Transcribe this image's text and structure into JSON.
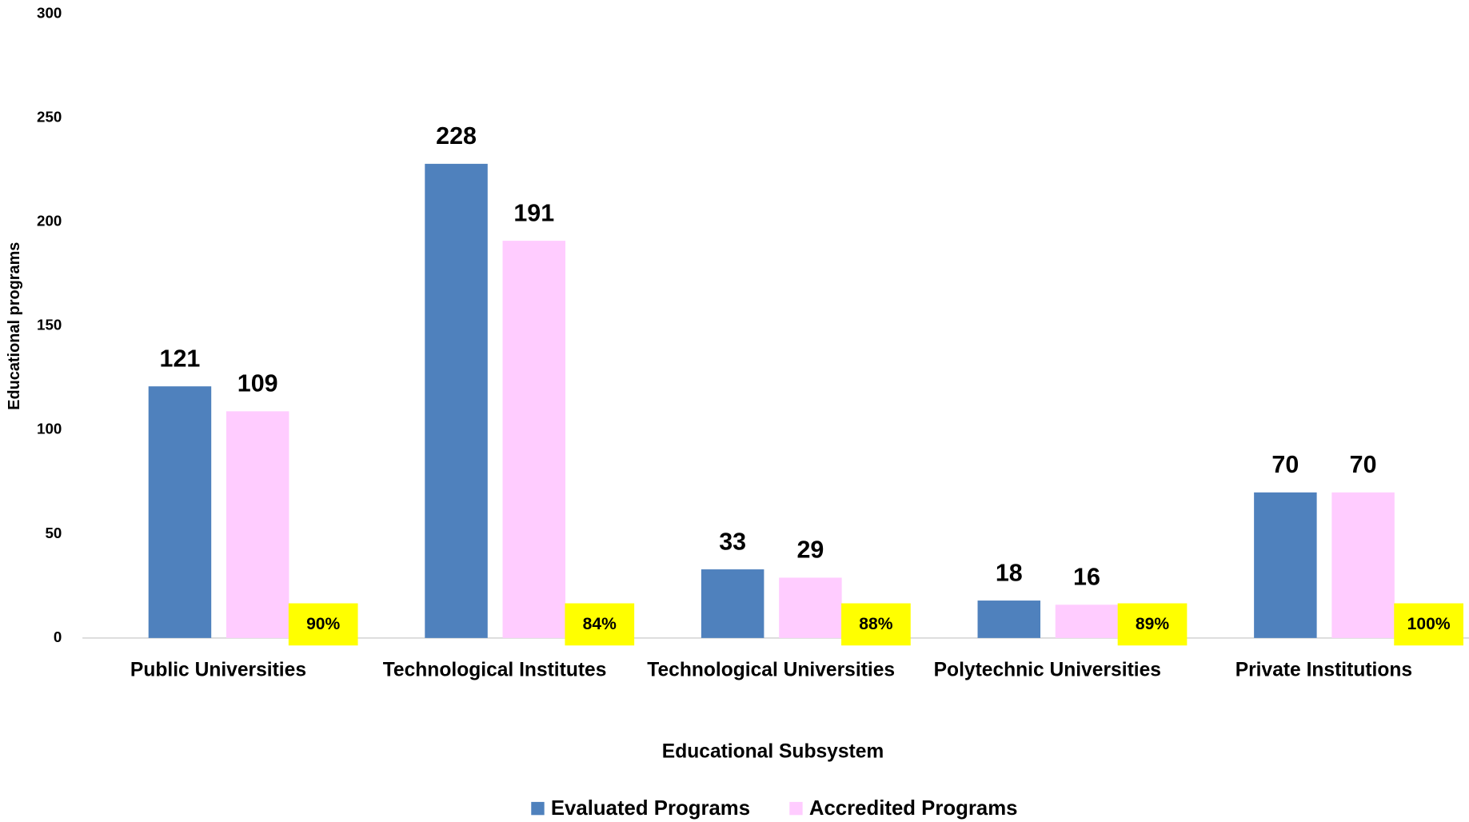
{
  "chart_data": {
    "type": "bar",
    "x_label": "Educational Subsystem",
    "y_label": "Educational programs",
    "categories": [
      "Public Universities",
      "Technological Institutes",
      "Technological Universities",
      "Polytechnic Universities",
      "Private Institutions"
    ],
    "series": [
      {
        "name": "Evaluated Programs",
        "color": "#4f81bd",
        "values": [
          121,
          228,
          33,
          18,
          70
        ]
      },
      {
        "name": "Accredited Programs",
        "color": "#ffccff",
        "values": [
          109,
          191,
          29,
          16,
          70
        ]
      }
    ],
    "annotations": [
      "90%",
      "84%",
      "88%",
      "89%",
      "100%"
    ],
    "annotation_color": "#ffff00",
    "ylim": [
      0,
      300
    ],
    "yticks": [
      0,
      50,
      100,
      150,
      200,
      250,
      300
    ],
    "grid": false,
    "legend": "bottom"
  }
}
